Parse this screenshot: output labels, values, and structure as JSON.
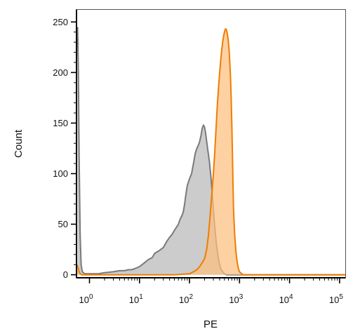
{
  "chart_data": {
    "type": "area",
    "title": "",
    "xlabel": "PE",
    "ylabel": "Count",
    "x_scale": "log",
    "xlim": [
      0.55,
      130000
    ],
    "ylim": [
      -3,
      262
    ],
    "grid": false,
    "legend": "none",
    "y_ticks": [
      0,
      50,
      100,
      150,
      200,
      250
    ],
    "y_tick_labels": [
      "0",
      "50",
      "100",
      "150",
      "200",
      "250"
    ],
    "x_ticks": [
      {
        "value": 1,
        "base": "10",
        "exp": "0"
      },
      {
        "value": 10,
        "base": "10",
        "exp": "1"
      },
      {
        "value": 100,
        "base": "10",
        "exp": "2"
      },
      {
        "value": 1000,
        "base": "10",
        "exp": "3"
      },
      {
        "value": 10000,
        "base": "10",
        "exp": "4"
      },
      {
        "value": 100000,
        "base": "10",
        "exp": "5"
      }
    ],
    "series": [
      {
        "stroke": "#7a7a7a",
        "fill": "#cccccc",
        "x": [
          0.58,
          0.6,
          0.62,
          0.65,
          0.68,
          0.72,
          0.8,
          1,
          1.5,
          2,
          3,
          4,
          5,
          6,
          7,
          8,
          9,
          10,
          12,
          15,
          18,
          20,
          25,
          30,
          35,
          40,
          45,
          50,
          55,
          60,
          65,
          70,
          75,
          80,
          85,
          90,
          100,
          110,
          120,
          130,
          140,
          150,
          160,
          170,
          180,
          190,
          200,
          210,
          220,
          230,
          250,
          270,
          290,
          310,
          330,
          350,
          380,
          420,
          460,
          500,
          550,
          600,
          700,
          1000,
          10000,
          130000
        ],
        "y": [
          245,
          200,
          120,
          40,
          10,
          3,
          1,
          1,
          1,
          2,
          3,
          4,
          4,
          5,
          5,
          6,
          7,
          8,
          11,
          15,
          17,
          21,
          24,
          27,
          33,
          37,
          40,
          44,
          47,
          50,
          55,
          58,
          62,
          70,
          80,
          88,
          95,
          100,
          110,
          120,
          125,
          128,
          132,
          138,
          145,
          148,
          146,
          140,
          132,
          125,
          112,
          95,
          75,
          55,
          40,
          28,
          15,
          6,
          3,
          1,
          0,
          0,
          0,
          0,
          0,
          0
        ]
      },
      {
        "stroke": "#f07d00",
        "fill": "#fdbf80",
        "x": [
          0.56,
          0.58,
          0.6,
          0.62,
          0.65,
          0.7,
          1,
          5,
          10,
          50,
          100,
          120,
          140,
          160,
          180,
          200,
          220,
          240,
          260,
          280,
          300,
          320,
          340,
          360,
          380,
          400,
          420,
          440,
          460,
          480,
          500,
          520,
          540,
          560,
          580,
          600,
          620,
          640,
          660,
          680,
          700,
          720,
          740,
          760,
          800,
          850,
          900,
          950,
          1000,
          1100,
          1200,
          1500,
          2000,
          5000,
          10000,
          130000
        ],
        "y": [
          10,
          8,
          6,
          3,
          1,
          0,
          0,
          0,
          0,
          0,
          1,
          3,
          5,
          8,
          12,
          16,
          25,
          40,
          60,
          80,
          100,
          122,
          145,
          168,
          185,
          200,
          212,
          222,
          230,
          236,
          240,
          243,
          243,
          240,
          236,
          230,
          222,
          210,
          195,
          175,
          150,
          120,
          90,
          65,
          40,
          22,
          12,
          6,
          3,
          1,
          0,
          0,
          0,
          0,
          0,
          0
        ]
      }
    ]
  }
}
